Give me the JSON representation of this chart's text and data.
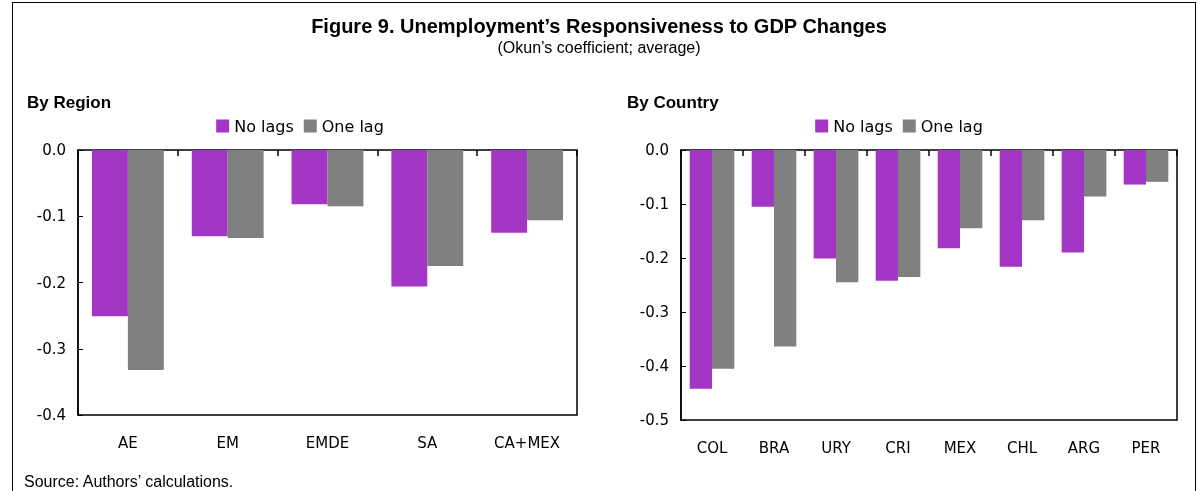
{
  "chart_data": [
    {
      "type": "other",
      "title": "Figure 9. Unemployment’s Responsiveness to GDP Changes",
      "subtitle": "(Okun’s coefficient; average)"
    },
    {
      "type": "bar",
      "title": "By Region",
      "categories": [
        "AE",
        "EM",
        "EMDE",
        "SA",
        "CA+MEX"
      ],
      "series": [
        {
          "name": "No lags",
          "color": "#a336c5",
          "values": [
            -0.251,
            -0.13,
            -0.082,
            -0.206,
            -0.125
          ]
        },
        {
          "name": "One lag",
          "color": "#808080",
          "values": [
            -0.332,
            -0.133,
            -0.085,
            -0.175,
            -0.106
          ]
        }
      ],
      "ylim": [
        -0.4,
        0
      ],
      "yticks": [
        {
          "value": 0,
          "label": "0.0"
        },
        -0.1,
        -0.2,
        -0.3,
        -0.4
      ],
      "grid": false,
      "legend": "top",
      "annotations": [
        "Source: Authors’ calculations."
      ]
    },
    {
      "type": "bar",
      "title": "By Country",
      "categories": [
        "COL",
        "BRA",
        "URY",
        "CRI",
        "MEX",
        "CHL",
        "ARG",
        "PER"
      ],
      "series": [
        {
          "name": "No lags",
          "color": "#a336c5",
          "values": [
            -0.442,
            -0.105,
            -0.201,
            -0.242,
            -0.182,
            -0.216,
            -0.19,
            -0.064
          ]
        },
        {
          "name": "One lag",
          "color": "#808080",
          "values": [
            -0.405,
            -0.364,
            -0.245,
            -0.235,
            -0.145,
            -0.13,
            -0.086,
            -0.059
          ]
        }
      ],
      "ylim": [
        -0.5,
        0
      ],
      "yticks": [
        {
          "value": 0,
          "label": "0.0"
        },
        -0.1,
        -0.2,
        -0.3,
        -0.4,
        -0.5
      ],
      "grid": false,
      "legend": "top"
    }
  ]
}
